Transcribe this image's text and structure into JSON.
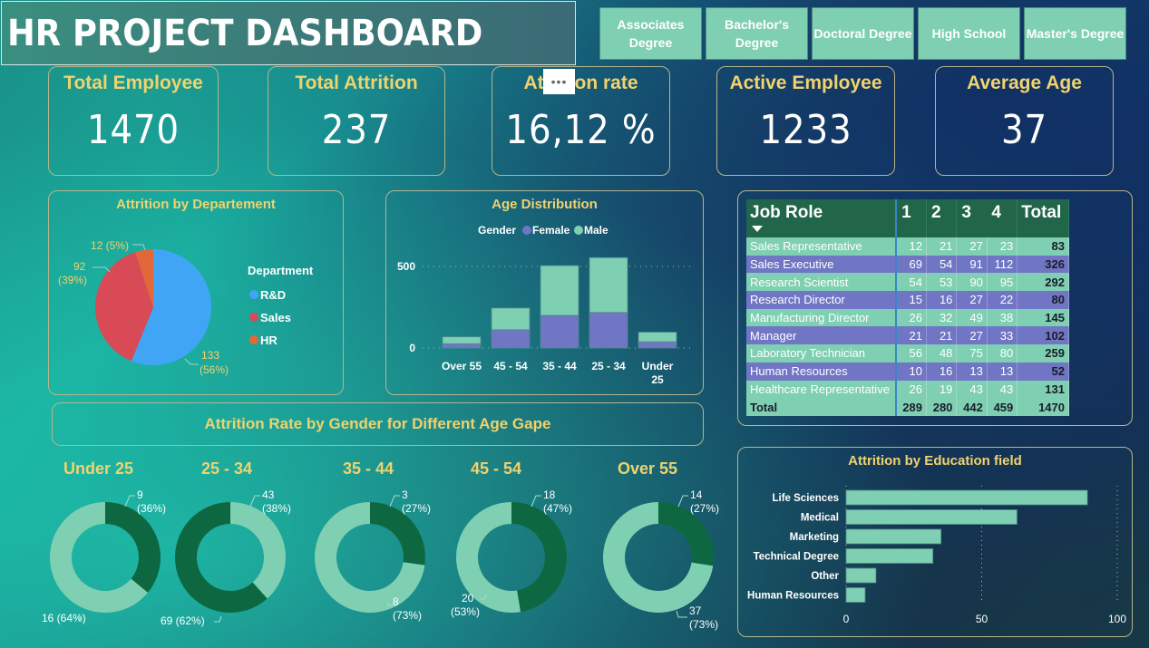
{
  "header": {
    "title": "HR PROJECT DASHBOARD"
  },
  "slicers": [
    {
      "label": "Associates Degree"
    },
    {
      "label": "Bachelor's Degree"
    },
    {
      "label": "Doctoral Degree"
    },
    {
      "label": "High School"
    },
    {
      "label": "Master's Degree"
    }
  ],
  "kpis": [
    {
      "label": "Total Employee",
      "value": "1470"
    },
    {
      "label": "Total Attrition",
      "value": "237"
    },
    {
      "label": "Attrition rate",
      "value": "16,12 %"
    },
    {
      "label": "Active Employee",
      "value": "1233"
    },
    {
      "label": "Average Age",
      "value": "37"
    }
  ],
  "more_options_label": "•••",
  "colors": {
    "accent_yellow": "#efd36e",
    "rd": "#41a5f5",
    "sales": "#d84a55",
    "hr": "#e2683a",
    "female": "#7075c4",
    "male": "#7fcfb2",
    "dark_green": "#0d6841"
  },
  "dept_chart": {
    "title": "Attrition by Departement",
    "legend_title": "Department",
    "chart_data": {
      "type": "pie",
      "slices": [
        {
          "name": "R&D",
          "value": 133,
          "pct": "56%",
          "label": "133",
          "label2": "(56%)"
        },
        {
          "name": "Sales",
          "value": 92,
          "pct": "39%",
          "label": "92",
          "label2": "(39%)"
        },
        {
          "name": "HR",
          "value": 12,
          "pct": "5%",
          "label": "12 (5%)",
          "label2": ""
        }
      ]
    }
  },
  "age_chart": {
    "title": "Age Distribution",
    "legend_title": "Gender",
    "chart_data": {
      "type": "bar",
      "stacked": true,
      "categories": [
        "Over 55",
        "45 - 54",
        "35 - 44",
        "25 - 34",
        "Under 25"
      ],
      "category_lines": [
        [
          "Over 55"
        ],
        [
          "45 - 54"
        ],
        [
          "35 - 44"
        ],
        [
          "25 - 34"
        ],
        [
          "Under",
          "25"
        ]
      ],
      "series": [
        {
          "name": "Female",
          "values": [
            26,
            112,
            200,
            218,
            38
          ]
        },
        {
          "name": "Male",
          "values": [
            43,
            133,
            305,
            336,
            59
          ]
        }
      ],
      "yticks": [
        0,
        500
      ],
      "ylim": [
        0,
        560
      ],
      "legend": "top"
    }
  },
  "job_table": {
    "headers": [
      "Job Role",
      "1",
      "2",
      "3",
      "4",
      "Total"
    ],
    "rows": [
      {
        "role": "Sales Representative",
        "v": [
          "12",
          "21",
          "27",
          "23"
        ],
        "total": "83"
      },
      {
        "role": "Sales Executive",
        "v": [
          "69",
          "54",
          "91",
          "112"
        ],
        "total": "326"
      },
      {
        "role": "Research Scientist",
        "v": [
          "54",
          "53",
          "90",
          "95"
        ],
        "total": "292"
      },
      {
        "role": "Research Director",
        "v": [
          "15",
          "16",
          "27",
          "22"
        ],
        "total": "80"
      },
      {
        "role": "Manufacturing Director",
        "v": [
          "26",
          "32",
          "49",
          "38"
        ],
        "total": "145"
      },
      {
        "role": "Manager",
        "v": [
          "21",
          "21",
          "27",
          "33"
        ],
        "total": "102"
      },
      {
        "role": "Laboratory Technician",
        "v": [
          "56",
          "48",
          "75",
          "80"
        ],
        "total": "259"
      },
      {
        "role": "Human Resources",
        "v": [
          "10",
          "16",
          "13",
          "13"
        ],
        "total": "52"
      },
      {
        "role": "Healthcare Representative",
        "v": [
          "26",
          "19",
          "43",
          "43"
        ],
        "total": "131"
      }
    ],
    "total_row": {
      "role": "Total",
      "v": [
        "289",
        "280",
        "442",
        "459"
      ],
      "total": "1470"
    }
  },
  "gender_section": {
    "title": "Attrition Rate by Gender for Different Age Gape"
  },
  "donuts": [
    {
      "title": "Under 25",
      "dark": {
        "value": 9,
        "label": "9",
        "pct": "(36%)"
      },
      "light": {
        "value": 16,
        "label": "16 (64%)",
        "pct": ""
      }
    },
    {
      "title": "25 - 34",
      "dark": {
        "value": 69,
        "label": "69 (62%)",
        "pct": ""
      },
      "light": {
        "value": 43,
        "label": "43",
        "pct": "(38%)"
      }
    },
    {
      "title": "35 - 44",
      "dark": {
        "value": 3,
        "label": "3",
        "pct": "(27%)"
      },
      "light": {
        "value": 8,
        "label": "8",
        "pct": "(73%)"
      }
    },
    {
      "title": "45 - 54",
      "dark": {
        "value": 18,
        "label": "18",
        "pct": "(47%)"
      },
      "light": {
        "value": 20,
        "label": "20",
        "pct": "(53%)"
      }
    },
    {
      "title": "Over 55",
      "dark": {
        "value": 14,
        "label": "14",
        "pct": "(27%)"
      },
      "light": {
        "value": 37,
        "label": "37",
        "pct": "(73%)"
      }
    }
  ],
  "edu_chart": {
    "title": "Attrition by Education field",
    "chart_data": {
      "type": "bar",
      "orientation": "horizontal",
      "categories": [
        "Life Sciences",
        "Medical",
        "Marketing",
        "Technical Degree",
        "Other",
        "Human Resources"
      ],
      "values": [
        89,
        63,
        35,
        32,
        11,
        7
      ],
      "xticks": [
        0,
        50,
        100
      ],
      "xlim": [
        0,
        100
      ]
    }
  }
}
